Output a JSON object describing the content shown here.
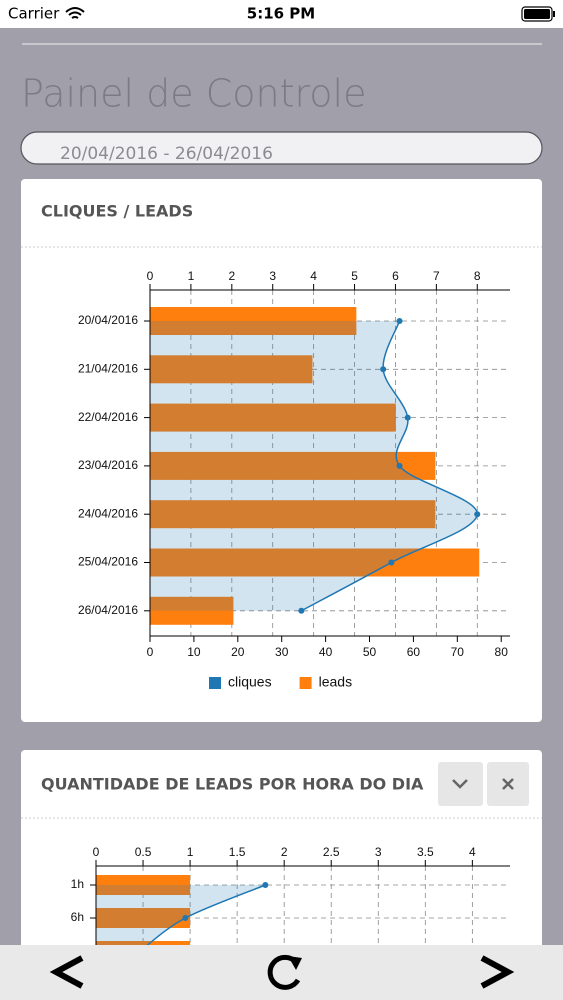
{
  "status_bar": {
    "carrier": "Carrier",
    "time": "5:16 PM"
  },
  "title": "Painel de Controle",
  "date_range": "20/04/2016 - 26/04/2016",
  "chart_data": [
    {
      "type": "bar",
      "orientation": "horizontal",
      "title": "CLIQUES / LEADS",
      "categories": [
        "20/04/2016",
        "21/04/2016",
        "22/04/2016",
        "23/04/2016",
        "24/04/2016",
        "25/04/2016",
        "26/04/2016"
      ],
      "series": [
        {
          "name": "cliques",
          "type": "line",
          "axis": "x2",
          "color": "#1f77b4",
          "values": [
            6.1,
            5.7,
            6.3,
            6.1,
            8,
            5.9,
            3.7
          ]
        },
        {
          "name": "leads",
          "type": "bar",
          "color": "#ff7f0e",
          "values": [
            47,
            37,
            56,
            65,
            65,
            75,
            19
          ]
        }
      ],
      "xlim": [
        0,
        82
      ],
      "xticks": [
        0,
        10,
        20,
        30,
        40,
        50,
        60,
        70,
        80
      ],
      "x2lim": [
        0,
        8.8
      ],
      "x2ticks": [
        0,
        1,
        2,
        3,
        4,
        5,
        6,
        7,
        8
      ],
      "grid": true,
      "legend": "bottom"
    },
    {
      "type": "bar",
      "orientation": "horizontal",
      "title": "QUANTIDADE DE LEADS POR HORA DO DIA",
      "categories": [
        "1h",
        "6h",
        null
      ],
      "series": [
        {
          "type": "line",
          "color": "#1f77b4",
          "values": [
            1.8,
            0.95,
            0.47
          ]
        },
        {
          "type": "bar",
          "color": "#ff7f0e",
          "values": [
            1,
            1,
            1
          ]
        }
      ],
      "xlim": [
        0,
        4.4
      ],
      "xticks": [
        0,
        0.5,
        1,
        1.5,
        2,
        2.5,
        3,
        3.5,
        4
      ],
      "grid": true
    }
  ]
}
